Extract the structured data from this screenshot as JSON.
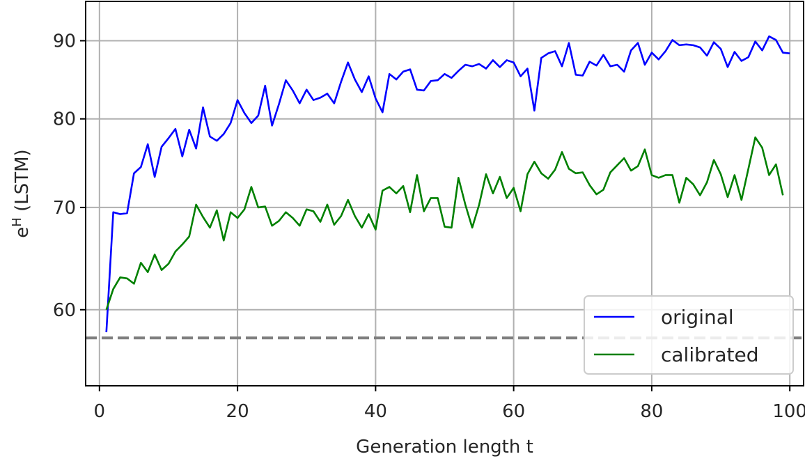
{
  "chart_data": {
    "type": "line",
    "xlabel": "Generation length t",
    "ylabel_main": "e",
    "ylabel_sup": "H",
    "ylabel_rest": " (LSTM)",
    "xlim": [
      -2,
      102
    ],
    "ylim": [
      53.5,
      95.5
    ],
    "y_scale": "log",
    "x_ticks": [
      0,
      20,
      40,
      60,
      80,
      100
    ],
    "y_ticks": [
      60,
      70,
      80,
      90
    ],
    "grid": true,
    "legend_position": "lower-right",
    "reference_line": {
      "y": 57.5,
      "style": "dashed",
      "color": "#808080"
    },
    "series": [
      {
        "name": "original",
        "color": "#0000ff",
        "x": [
          1,
          2,
          3,
          4,
          5,
          6,
          7,
          8,
          9,
          10,
          11,
          12,
          13,
          14,
          15,
          16,
          17,
          18,
          19,
          20,
          21,
          22,
          23,
          24,
          25,
          26,
          27,
          28,
          29,
          30,
          31,
          32,
          33,
          34,
          35,
          36,
          37,
          38,
          39,
          40,
          41,
          42,
          43,
          44,
          45,
          46,
          47,
          48,
          49,
          50,
          51,
          52,
          53,
          54,
          55,
          56,
          57,
          58,
          59,
          60,
          61,
          62,
          63,
          64,
          65,
          66,
          67,
          68,
          69,
          70,
          71,
          72,
          73,
          74,
          75,
          76,
          77,
          78,
          79,
          80,
          81,
          82,
          83,
          84,
          85,
          86,
          87,
          88,
          89,
          90,
          91,
          92,
          93,
          94,
          95,
          96,
          97,
          98,
          99,
          100
        ],
        "values": [
          58,
          69.5,
          69.3,
          69.4,
          73.7,
          74.4,
          77,
          73.3,
          76.7,
          77.7,
          78.8,
          75.6,
          78.7,
          76.5,
          81.4,
          77.9,
          77.4,
          78.2,
          79.5,
          82.3,
          80.7,
          79.5,
          80.4,
          84.1,
          79.2,
          81.8,
          84.8,
          83.5,
          81.9,
          83.6,
          82.3,
          82.6,
          83.1,
          81.9,
          84.6,
          87.1,
          84.9,
          83.3,
          85.3,
          82.5,
          80.8,
          85.6,
          84.9,
          85.9,
          86.2,
          83.6,
          83.5,
          84.7,
          84.8,
          85.6,
          85.1,
          86,
          86.8,
          86.6,
          86.9,
          86.3,
          87.4,
          86.5,
          87.4,
          87.1,
          85.3,
          86.3,
          81,
          87.7,
          88.3,
          88.6,
          86.6,
          89.7,
          85.5,
          85.4,
          87.2,
          86.7,
          88.1,
          86.6,
          86.8,
          85.9,
          88.7,
          89.7,
          86.8,
          88.4,
          87.5,
          88.6,
          90.1,
          89.4,
          89.5,
          89.4,
          89.1,
          88,
          89.8,
          88.9,
          86.5,
          88.5,
          87.3,
          87.8,
          89.9,
          88.7,
          90.6,
          90.1,
          88.4,
          88.3
        ]
      },
      {
        "name": "calibrated",
        "color": "#008000",
        "x": [
          1,
          2,
          3,
          4,
          5,
          6,
          7,
          8,
          9,
          10,
          11,
          12,
          13,
          14,
          15,
          16,
          17,
          18,
          19,
          20,
          21,
          22,
          23,
          24,
          25,
          26,
          27,
          28,
          29,
          30,
          31,
          32,
          33,
          34,
          35,
          36,
          37,
          38,
          39,
          40,
          41,
          42,
          43,
          44,
          45,
          46,
          47,
          48,
          49,
          50,
          51,
          52,
          53,
          54,
          55,
          56,
          57,
          58,
          59,
          60,
          61,
          62,
          63,
          64,
          65,
          66,
          67,
          68,
          69,
          70,
          71,
          72,
          73,
          74,
          75,
          76,
          77,
          78,
          79,
          80,
          81,
          82,
          83,
          84,
          85,
          86,
          87,
          88,
          89,
          90,
          91,
          92,
          93,
          94,
          95,
          96,
          97,
          98,
          99
        ],
        "values": [
          60,
          61.9,
          63,
          62.9,
          62.4,
          64.4,
          63.5,
          65.2,
          63.7,
          64.3,
          65.5,
          66.2,
          67,
          70.3,
          69,
          67.9,
          69.7,
          66.6,
          69.5,
          68.9,
          69.8,
          72.2,
          70,
          70.1,
          68.1,
          68.6,
          69.5,
          68.9,
          68.1,
          69.8,
          69.6,
          68.5,
          70.3,
          68.2,
          69.1,
          70.8,
          69.1,
          67.9,
          69.3,
          67.7,
          71.8,
          72.2,
          71.5,
          72.3,
          69.5,
          73.5,
          69.6,
          71,
          71,
          68,
          67.9,
          73.2,
          70.3,
          67.9,
          70.3,
          73.6,
          71.5,
          73.3,
          71,
          72.1,
          69.6,
          73.6,
          75,
          73.7,
          73.1,
          74.1,
          76.1,
          74.2,
          73.7,
          73.8,
          72.4,
          71.4,
          71.9,
          73.8,
          74.6,
          75.4,
          74,
          74.5,
          76.4,
          73.5,
          73.2,
          73.5,
          73.5,
          70.5,
          73.2,
          72.5,
          71.3,
          72.7,
          75.2,
          73.6,
          71.1,
          73.5,
          70.8,
          74.2,
          77.8,
          76.6,
          73.5,
          74.7,
          71.3
        ]
      }
    ]
  }
}
